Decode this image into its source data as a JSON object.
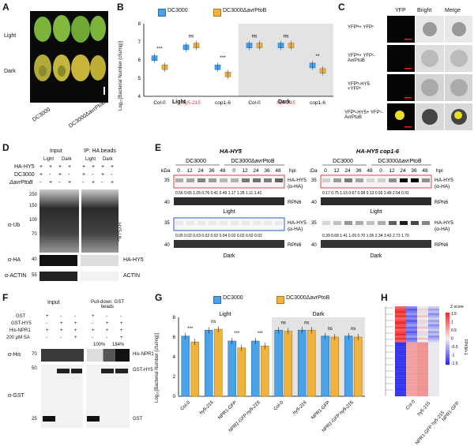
{
  "labels": {
    "A": "A",
    "B": "B",
    "C": "C",
    "D": "D",
    "E": "E",
    "F": "F",
    "G": "G",
    "H": "H"
  },
  "panelA": {
    "light": "Light",
    "dark": "Dark",
    "x1": "DC3000",
    "x2": "DC3000ΔavrPtoB"
  },
  "legend": {
    "dc3000": "DC3000",
    "mut": "DC3000ΔavrPtoB",
    "blue": "#4aa3e8",
    "orange": "#f0b340"
  },
  "panelB": {
    "ylabel": "Log₁₀[Bacterial Number (cfu/mg)]",
    "yticks": [
      "4",
      "5",
      "6",
      "7",
      "8"
    ],
    "sig": [
      "***",
      "ns",
      "***",
      "ns",
      "ns",
      "**"
    ],
    "cats": [
      "Col-0",
      "hy5-215",
      "cop1-6",
      "Col-0",
      "hy5-215",
      "cop1-6"
    ],
    "light": "Light",
    "dark": "Dark"
  },
  "panelC": {
    "cols": [
      "YFP",
      "Bright",
      "Merge"
    ],
    "rows": [
      "YFPᴺ+ YFPᶜ",
      "YFPᴺ+ YFPᶜ-AvrPtoB",
      "YFPᴺ-HY5 +YFPᶜ",
      "YFPᴺ-HY5+ YFPᶜ-AvrPtoB"
    ]
  },
  "panelD": {
    "input": "Input",
    "ip": "IP: HA beads",
    "light": "Light",
    "dark": "Dark",
    "rows": [
      {
        "name": "HA-HY5",
        "vals": [
          "+",
          "+",
          "+",
          "+",
          "+",
          "+",
          "+",
          "+"
        ]
      },
      {
        "name": "DC3000",
        "vals": [
          "+",
          "-",
          "+",
          "-",
          "+",
          "-",
          "+",
          "-"
        ]
      },
      {
        "name": "ΔavrPtoB",
        "vals": [
          "-",
          "+",
          "-",
          "+",
          "-",
          "+",
          "-",
          "+"
        ]
      }
    ],
    "kda": [
      "250",
      "150",
      "100",
      "70",
      "40",
      "55"
    ],
    "aub": "α-Ub",
    "ub": "HY5-Ubₙ",
    "aha": "α-HA",
    "hahy5": "HA-HY5",
    "aactin": "α-ACTIN",
    "actin": "ACTIN"
  },
  "panelE": {
    "left": {
      "title": "HA-HY5",
      "g1": "DC3000",
      "g2": "DC3000ΔavrPtoB",
      "kda": "kDa",
      "hpi": [
        "0",
        "12",
        "24",
        "36",
        "48",
        "0",
        "12",
        "24",
        "36",
        "48"
      ],
      "hpiunit": "hpi",
      "light_vals": "0.56 0.65 1.05 0.76 0.41 0.49 1.17 1.28 1.11 1.41",
      "dark_vals": "0.05 0.02 0.03 0.02 0.02 0.04 0.02 0.02 0.02 0.02"
    },
    "right": {
      "title": "HA-HY5 cop1-6",
      "g1": "DC3000",
      "g2": "DC3000ΔavrPtoB",
      "kda": "kDa",
      "hpi": [
        "0",
        "12",
        "24",
        "36",
        "48",
        "0",
        "12",
        "24",
        "36",
        "48"
      ],
      "hpiunit": "hpi",
      "light_vals": "0.17 0.75 1.15 0.67 0.08 0.13 0.93 2.49 2.54 0.91",
      "dark_vals": "0.39 0.68 1.41 1.05 0.70 1.05 2.34 3.43 2.73 1.70"
    },
    "hahy5": "HA-HY5",
    "aha": "(α-HA)",
    "rpn6": "RPN6",
    "light": "Light",
    "dark": "Dark",
    "kda_marks": [
      "35",
      "40"
    ]
  },
  "panelF": {
    "input": "Input",
    "pd": "Pull-down: GST beads",
    "rows": [
      {
        "name": "GST",
        "vals": [
          "+",
          "-",
          "-",
          "+",
          "-",
          "-"
        ]
      },
      {
        "name": "GST-HY5",
        "vals": [
          "-",
          "+",
          "+",
          "-",
          "+",
          "+"
        ]
      },
      {
        "name": "His-NPR1",
        "vals": [
          "+",
          "+",
          "+",
          "+",
          "+",
          "+"
        ]
      },
      {
        "name": "200 μM SA",
        "vals": [
          "-",
          "-",
          "+",
          "-",
          "-",
          "+"
        ]
      }
    ],
    "pct1": "100%",
    "pct2": "184%",
    "ahis": "α-His",
    "agst": "α-GST",
    "hisnpr1": "His-NPR1",
    "gsthy5": "GST-HY5",
    "gst": "GST",
    "kda": [
      "70",
      "50",
      "25"
    ]
  },
  "panelG": {
    "ylabel": "Log₁₀[Bacterial Number (cfu/mg)]",
    "yticks": [
      "0",
      "2",
      "4",
      "6",
      "8"
    ],
    "light": "Light",
    "dark": "Dark",
    "cats": [
      "Col-0",
      "hy5-215",
      "NPR1-GFP",
      "NPR1-GFP hy5-215",
      "Col-0",
      "hy5-215",
      "NPR1-GFP",
      "NPR1-GFP hy5-215"
    ],
    "sig": [
      "***",
      "ns",
      "***",
      "***",
      "ns",
      "ns",
      "ns",
      "ns"
    ]
  },
  "chart_data": [
    {
      "type": "bar",
      "title": "",
      "ylabel": "Log₁₀[Bacterial Number (cfu/mg)]",
      "ylim": [
        4,
        8
      ],
      "categories": [
        "Col-0",
        "hy5-215",
        "cop1-6",
        "Col-0",
        "hy5-215",
        "cop1-6"
      ],
      "groups": [
        "Light",
        "Light",
        "Light",
        "Dark",
        "Dark",
        "Dark"
      ],
      "series": [
        {
          "name": "DC3000",
          "values": [
            6.1,
            6.7,
            5.6,
            6.8,
            6.8,
            5.7
          ]
        },
        {
          "name": "DC3000ΔavrPtoB",
          "values": [
            5.6,
            6.8,
            5.2,
            6.8,
            6.8,
            5.4
          ]
        }
      ]
    },
    {
      "type": "bar",
      "title": "",
      "ylabel": "Log₁₀[Bacterial Number (cfu/mg)]",
      "ylim": [
        0,
        8
      ],
      "categories": [
        "Col-0",
        "hy5-215",
        "NPR1-GFP",
        "NPR1-GFP hy5-215",
        "Col-0",
        "hy5-215",
        "NPR1-GFP",
        "NPR1-GFP hy5-215"
      ],
      "groups": [
        "Light",
        "Light",
        "Light",
        "Light",
        "Dark",
        "Dark",
        "Dark",
        "Dark"
      ],
      "series": [
        {
          "name": "DC3000",
          "values": [
            6.1,
            6.7,
            5.6,
            5.6,
            6.7,
            6.7,
            6.1,
            6.1
          ]
        },
        {
          "name": "DC3000ΔavrPtoB",
          "values": [
            5.5,
            6.8,
            4.9,
            5.1,
            6.6,
            6.7,
            6.0,
            6.0
          ]
        }
      ]
    }
  ],
  "panelH": {
    "cols": [
      "Col-0",
      "hy5-215",
      "NPR1-GFP hy5-215",
      "NPR1-GFP"
    ],
    "zlabel": "Z-score",
    "fpkm": "FPKM+1",
    "zticks": [
      "1.5",
      "1",
      "0.5",
      "0",
      "-0.5",
      "-1",
      "-1.5"
    ]
  }
}
